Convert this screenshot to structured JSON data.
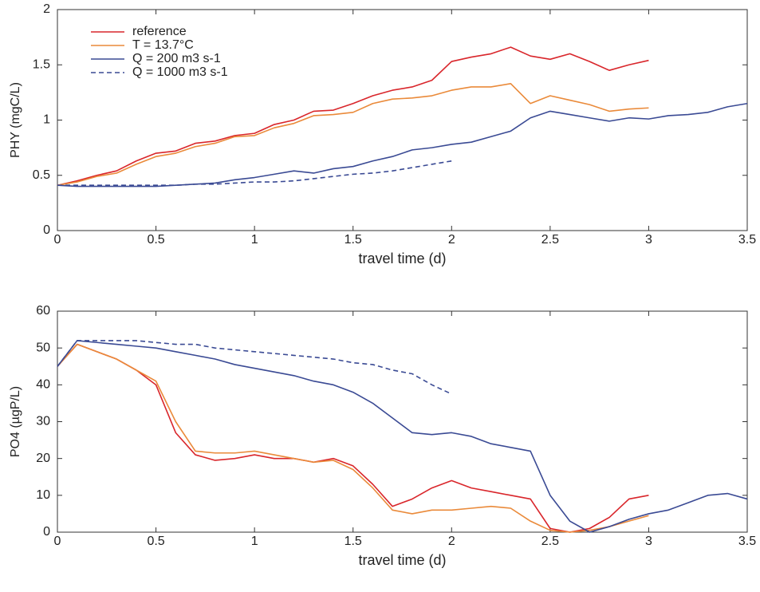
{
  "chart_data": [
    {
      "type": "line",
      "xlabel": "travel time (d)",
      "ylabel": "PHY (mgC/L)",
      "xlim": [
        0,
        3.5
      ],
      "xticks": [
        0,
        0.5,
        1,
        1.5,
        2,
        2.5,
        3,
        3.5
      ],
      "ylim": [
        0,
        2
      ],
      "yticks": [
        0,
        0.5,
        1,
        1.5,
        2
      ],
      "legend": "upper left",
      "x": [
        0,
        0.1,
        0.2,
        0.3,
        0.4,
        0.5,
        0.6,
        0.7,
        0.8,
        0.9,
        1,
        1.1,
        1.2,
        1.3,
        1.4,
        1.5,
        1.6,
        1.7,
        1.8,
        1.9,
        2,
        2.1,
        2.2,
        2.3,
        2.4,
        2.5,
        2.6,
        2.7,
        2.8,
        2.9,
        3,
        3.1,
        3.2,
        3.3,
        3.4,
        3.5
      ],
      "series": [
        {
          "name": "reference",
          "color": "#d9262b",
          "dashed": false,
          "values": [
            0.41,
            0.45,
            0.5,
            0.54,
            0.63,
            0.7,
            0.72,
            0.79,
            0.81,
            0.86,
            0.88,
            0.96,
            1.0,
            1.08,
            1.09,
            1.15,
            1.22,
            1.27,
            1.3,
            1.36,
            1.53,
            1.57,
            1.6,
            1.66,
            1.58,
            1.55,
            1.6,
            1.53,
            1.45,
            1.5,
            1.54,
            null,
            null,
            null,
            null,
            null
          ]
        },
        {
          "name": "T = 13.7°C",
          "color": "#ea8a3a",
          "dashed": false,
          "values": [
            0.41,
            0.44,
            0.49,
            0.52,
            0.6,
            0.67,
            0.7,
            0.76,
            0.79,
            0.85,
            0.86,
            0.93,
            0.97,
            1.04,
            1.05,
            1.07,
            1.15,
            1.19,
            1.2,
            1.22,
            1.27,
            1.3,
            1.3,
            1.33,
            1.15,
            1.22,
            1.18,
            1.14,
            1.08,
            1.1,
            1.11,
            null,
            null,
            null,
            null,
            null
          ]
        },
        {
          "name": "Q = 200 m3 s-1",
          "color": "#3a4a94",
          "dashed": false,
          "values": [
            0.41,
            0.4,
            0.4,
            0.4,
            0.4,
            0.4,
            0.41,
            0.42,
            0.43,
            0.46,
            0.48,
            0.51,
            0.54,
            0.52,
            0.56,
            0.58,
            0.63,
            0.67,
            0.73,
            0.75,
            0.78,
            0.8,
            0.85,
            0.9,
            1.02,
            1.08,
            1.05,
            1.02,
            0.99,
            1.02,
            1.01,
            1.04,
            1.05,
            1.07,
            1.12,
            1.15
          ]
        },
        {
          "name": "Q = 1000 m3 s-1",
          "color": "#3a4a94",
          "dashed": true,
          "values": [
            0.41,
            0.41,
            0.41,
            0.41,
            0.41,
            0.41,
            0.41,
            0.42,
            0.42,
            0.43,
            0.44,
            0.44,
            0.45,
            0.47,
            0.49,
            0.51,
            0.52,
            0.54,
            0.57,
            0.6,
            0.63,
            null,
            null,
            null,
            null,
            null,
            null,
            null,
            null,
            null,
            null,
            null,
            null,
            null,
            null,
            null
          ]
        }
      ]
    },
    {
      "type": "line",
      "xlabel": "travel time (d)",
      "ylabel": "PO4 (µgP/L)",
      "xlim": [
        0,
        3.5
      ],
      "xticks": [
        0,
        0.5,
        1,
        1.5,
        2,
        2.5,
        3,
        3.5
      ],
      "ylim": [
        0,
        60
      ],
      "yticks": [
        0,
        10,
        20,
        30,
        40,
        50,
        60
      ],
      "x": [
        0,
        0.1,
        0.2,
        0.3,
        0.4,
        0.5,
        0.6,
        0.7,
        0.8,
        0.9,
        1,
        1.1,
        1.2,
        1.3,
        1.4,
        1.5,
        1.6,
        1.7,
        1.8,
        1.9,
        2,
        2.1,
        2.2,
        2.3,
        2.4,
        2.5,
        2.6,
        2.7,
        2.8,
        2.9,
        3,
        3.1,
        3.2,
        3.3,
        3.4,
        3.5
      ],
      "series": [
        {
          "color": "#d9262b",
          "dashed": false,
          "values": [
            45,
            51,
            49,
            47,
            44,
            40,
            27,
            21,
            19.5,
            20,
            21,
            20,
            20,
            19,
            20,
            18,
            13,
            7,
            9,
            12,
            14,
            12,
            11,
            10,
            9,
            1,
            0,
            1,
            4,
            9,
            10,
            null,
            null,
            null,
            null,
            null
          ]
        },
        {
          "color": "#ea8a3a",
          "dashed": false,
          "values": [
            45,
            51,
            49,
            47,
            44,
            41,
            30,
            22,
            21.5,
            21.5,
            22,
            21,
            20,
            19,
            19.5,
            17,
            12,
            6,
            5,
            6,
            6,
            6.5,
            7,
            6.5,
            3,
            0.5,
            0,
            0.5,
            1.5,
            3,
            4.5,
            null,
            null,
            null,
            null,
            null
          ]
        },
        {
          "color": "#3a4a94",
          "dashed": false,
          "values": [
            45,
            52,
            51.5,
            51,
            50.5,
            50,
            49,
            48,
            47,
            45.5,
            44.5,
            43.5,
            42.5,
            41,
            40,
            38,
            35,
            31,
            27,
            26.5,
            27,
            26,
            24,
            23,
            22,
            10,
            3,
            0,
            1.5,
            3.5,
            5,
            6,
            8,
            10,
            10.5,
            9
          ]
        },
        {
          "color": "#3a4a94",
          "dashed": true,
          "values": [
            45,
            52,
            52,
            52,
            52,
            51.5,
            51,
            51,
            50,
            49.5,
            49,
            48.5,
            48,
            47.5,
            47,
            46,
            45.5,
            44,
            43,
            40,
            37.5,
            null,
            null,
            null,
            null,
            null,
            null,
            null,
            null,
            null,
            null,
            null,
            null,
            null,
            null,
            null
          ]
        }
      ]
    }
  ]
}
